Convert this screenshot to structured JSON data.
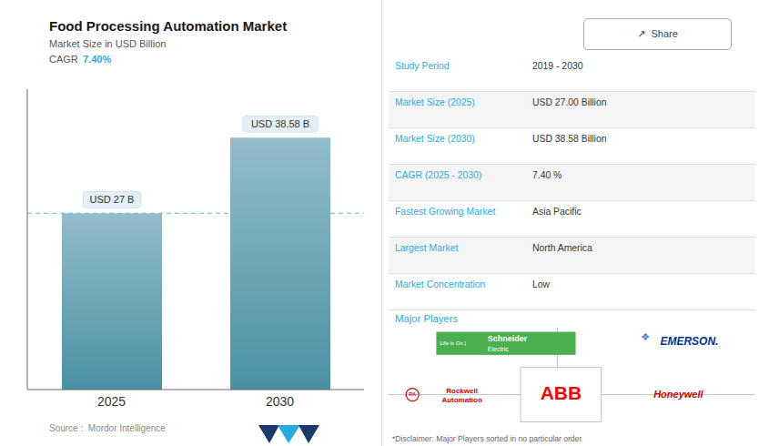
{
  "chart_data": {
    "type": "bar",
    "title": "Food Processing Automation Market",
    "subtitle": "Market Size in USD Billion",
    "cagr_label": "CAGR",
    "cagr_value": "7.40%",
    "categories": [
      "2025",
      "2030"
    ],
    "values": [
      27.0,
      38.58
    ],
    "value_labels": [
      "USD 27 B",
      "USD 38.58 B"
    ],
    "data_labels": true,
    "color": "#4a90a4",
    "ylim": [
      0,
      46
    ],
    "tick_labels": "x",
    "grid": false,
    "reference_line": 27.0,
    "source": "Source :  Mordor Intelligence",
    "share_label": "↗  Share",
    "table": [
      [
        "Study Period",
        "2019 - 2030"
      ],
      [
        "Market Size (2025)",
        "USD 27.00 Billion"
      ],
      [
        "Market Size (2030)",
        "USD 38.58 Billion"
      ],
      [
        "CAGR (2025 - 2030)",
        "7.40 %"
      ],
      [
        "Fastest Growing Market",
        "Asia Pacific"
      ],
      [
        "Largest Market",
        "North America"
      ],
      [
        "Market Concentration",
        "Low"
      ]
    ],
    "major_players_label": "Major Players",
    "logos": [
      "Life is On |",
      "Schneider",
      "Electric",
      "EMERSON.",
      "❖",
      "ABB",
      "Rockwell\nAutomation",
      "RA",
      "Honeywell"
    ],
    "disclaimer": "*Disclaimer: Major Players sorted in no particular order"
  }
}
